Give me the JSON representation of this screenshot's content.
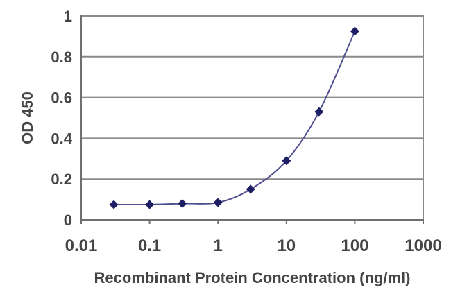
{
  "chart_data": {
    "type": "line",
    "title": "",
    "xlabel": "Recombinant Protein Concentration (ng/ml)",
    "ylabel": "OD 450",
    "x_scale": "log",
    "xlim": [
      0.01,
      1000
    ],
    "ylim": [
      0,
      1
    ],
    "grid": "horizontal",
    "legend": "none",
    "marker": "diamond",
    "series": [
      {
        "name": "OD 450",
        "x": [
          0.03,
          0.1,
          0.3,
          1,
          3,
          10,
          30,
          100
        ],
        "y": [
          0.075,
          0.075,
          0.08,
          0.085,
          0.15,
          0.29,
          0.53,
          0.925
        ]
      }
    ],
    "x_ticks": [
      {
        "value": 0.01,
        "label": "0.01"
      },
      {
        "value": 0.1,
        "label": "0.1"
      },
      {
        "value": 1,
        "label": "1"
      },
      {
        "value": 10,
        "label": "10"
      },
      {
        "value": 100,
        "label": "100"
      },
      {
        "value": 1000,
        "label": "1000"
      }
    ],
    "y_ticks": [
      {
        "value": 0,
        "label": "0"
      },
      {
        "value": 0.2,
        "label": "0.2"
      },
      {
        "value": 0.4,
        "label": "0.4"
      },
      {
        "value": 0.6,
        "label": "0.6"
      },
      {
        "value": 0.8,
        "label": "0.8"
      },
      {
        "value": 1,
        "label": "1"
      }
    ],
    "colors": {
      "line": "#4f4f8f",
      "marker": "#1e1e64",
      "grid": "#8a8a8a",
      "frame": "#8a8a8a",
      "axis": "#6f6f6f",
      "text": "#454545",
      "background": "#ffffff"
    }
  }
}
